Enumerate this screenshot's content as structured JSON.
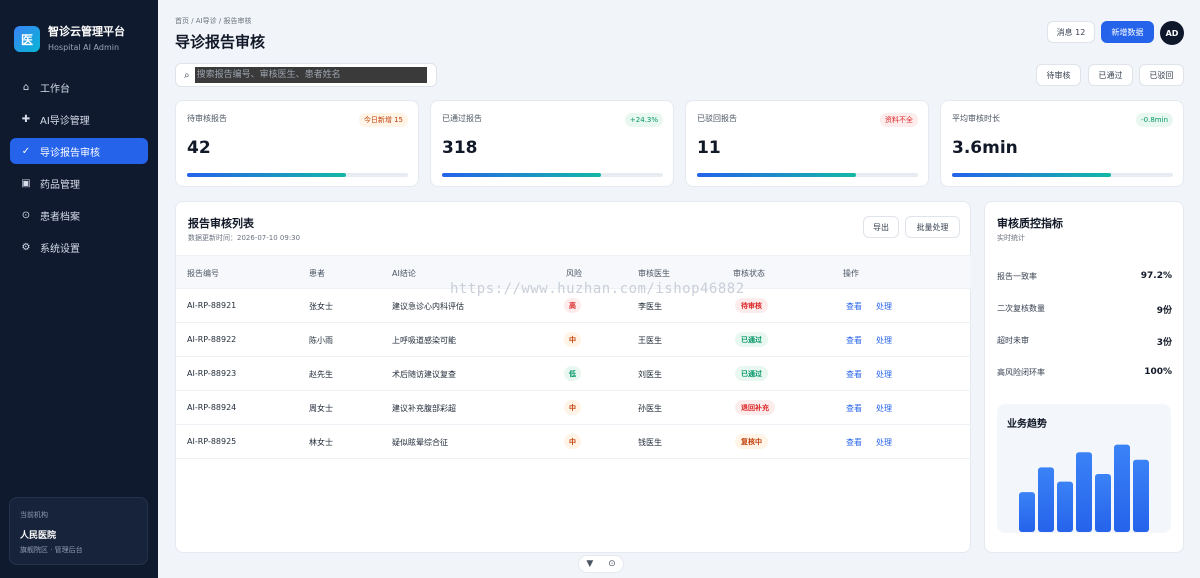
{
  "sidebar": {
    "logo_text": "医",
    "brand_title": "智诊云管理平台",
    "brand_sub": "Hospital AI Admin",
    "items": [
      {
        "label": "工作台",
        "icon": "home-icon",
        "glyph": "⌂"
      },
      {
        "label": "AI导诊管理",
        "icon": "plus-icon",
        "glyph": "✚"
      },
      {
        "label": "导诊报告审核",
        "icon": "check-icon",
        "glyph": "✓",
        "active": true
      },
      {
        "label": "药品管理",
        "icon": "pill-box-icon",
        "glyph": "▣"
      },
      {
        "label": "患者档案",
        "icon": "patient-icon",
        "glyph": "⊙"
      },
      {
        "label": "系统设置",
        "icon": "gear-icon",
        "glyph": "⚙"
      }
    ],
    "org": {
      "label": "当前机构",
      "name": "人民医院",
      "sub": "旗舰院区 · 管理后台"
    }
  },
  "header": {
    "breadcrumb": "首页 / AI导诊 / 报告审核",
    "title": "导诊报告审核",
    "messages_label": "消息 12",
    "new_button": "新增数据",
    "avatar": "AD"
  },
  "search": {
    "placeholder": "搜索报告编号、审核医生、患者姓名",
    "value": ""
  },
  "filters": [
    "待审核",
    "已通过",
    "已驳回"
  ],
  "stats": [
    {
      "label": "待审核报告",
      "value": "42",
      "badge": "今日新增 15",
      "badge_color": "#c2410c",
      "badge_bg": "#fff4e6",
      "progress": 0.72
    },
    {
      "label": "已通过报告",
      "value": "318",
      "badge": "+24.3%",
      "badge_color": "#059669",
      "badge_bg": "#e8f8f0",
      "progress": 0.72
    },
    {
      "label": "已驳回报告",
      "value": "11",
      "badge": "资料不全",
      "badge_color": "#dc2626",
      "badge_bg": "#fdecec",
      "progress": 0.72
    },
    {
      "label": "平均审核时长",
      "value": "3.6min",
      "badge": "-0.8min",
      "badge_color": "#059669",
      "badge_bg": "#e8f8f0",
      "progress": 0.72
    }
  ],
  "table": {
    "title": "报告审核列表",
    "subtitle": "数据更新时间：2026-07-10 09:30",
    "export_label": "导出",
    "batch_label": "批量处理",
    "columns": [
      "报告编号",
      "患者",
      "AI结论",
      "风险",
      "审核医生",
      "审核状态",
      "操作"
    ],
    "view_label": "查看",
    "process_label": "处理",
    "rows": [
      {
        "id": "AI-RP-88921",
        "patient": "张女士",
        "conclusion": "建议急诊心内科评估",
        "risk": "高",
        "doctor": "李医生",
        "status": "待审核"
      },
      {
        "id": "AI-RP-88922",
        "patient": "陈小雨",
        "conclusion": "上呼吸道感染可能",
        "risk": "中",
        "doctor": "王医生",
        "status": "已通过"
      },
      {
        "id": "AI-RP-88923",
        "patient": "赵先生",
        "conclusion": "术后随访建议复查",
        "risk": "低",
        "doctor": "刘医生",
        "status": "已通过"
      },
      {
        "id": "AI-RP-88924",
        "patient": "周女士",
        "conclusion": "建议补充腹部彩超",
        "risk": "中",
        "doctor": "孙医生",
        "status": "退回补充"
      },
      {
        "id": "AI-RP-88925",
        "patient": "林女士",
        "conclusion": "疑似眩晕综合征",
        "risk": "中",
        "doctor": "钱医生",
        "status": "复核中"
      }
    ],
    "risk_styles": {
      "高": {
        "color": "#dc2626",
        "bg": "#fdecec"
      },
      "中": {
        "color": "#c2410c",
        "bg": "#fff4e6"
      },
      "低": {
        "color": "#059669",
        "bg": "#e8f8f0"
      }
    },
    "status_styles": {
      "待审核": {
        "color": "#dc2626",
        "bg": "#fdecec"
      },
      "已通过": {
        "color": "#059669",
        "bg": "#e8f8f0"
      },
      "退回补充": {
        "color": "#dc2626",
        "bg": "#fdecec"
      },
      "复核中": {
        "color": "#c2410c",
        "bg": "#fff4e6"
      }
    }
  },
  "quality": {
    "title": "审核质控指标",
    "subtitle": "实时统计",
    "metrics": [
      {
        "label": "报告一致率",
        "value": "97.2%"
      },
      {
        "label": "二次复核数量",
        "value": "9份"
      },
      {
        "label": "超时未审",
        "value": "3份"
      },
      {
        "label": "高风险闭环率",
        "value": "100%"
      }
    ],
    "trend_title": "业务趋势"
  },
  "chart_data": {
    "type": "bar",
    "title": "业务趋势",
    "values": [
      42,
      68,
      53,
      84,
      61,
      92,
      76
    ],
    "ylim": [
      0,
      100
    ],
    "grid": false
  },
  "watermark": "https://www.huzhan.com/ishop46882",
  "float_toolbar": {
    "left_glyph": "▼",
    "right_glyph": "⊙"
  }
}
